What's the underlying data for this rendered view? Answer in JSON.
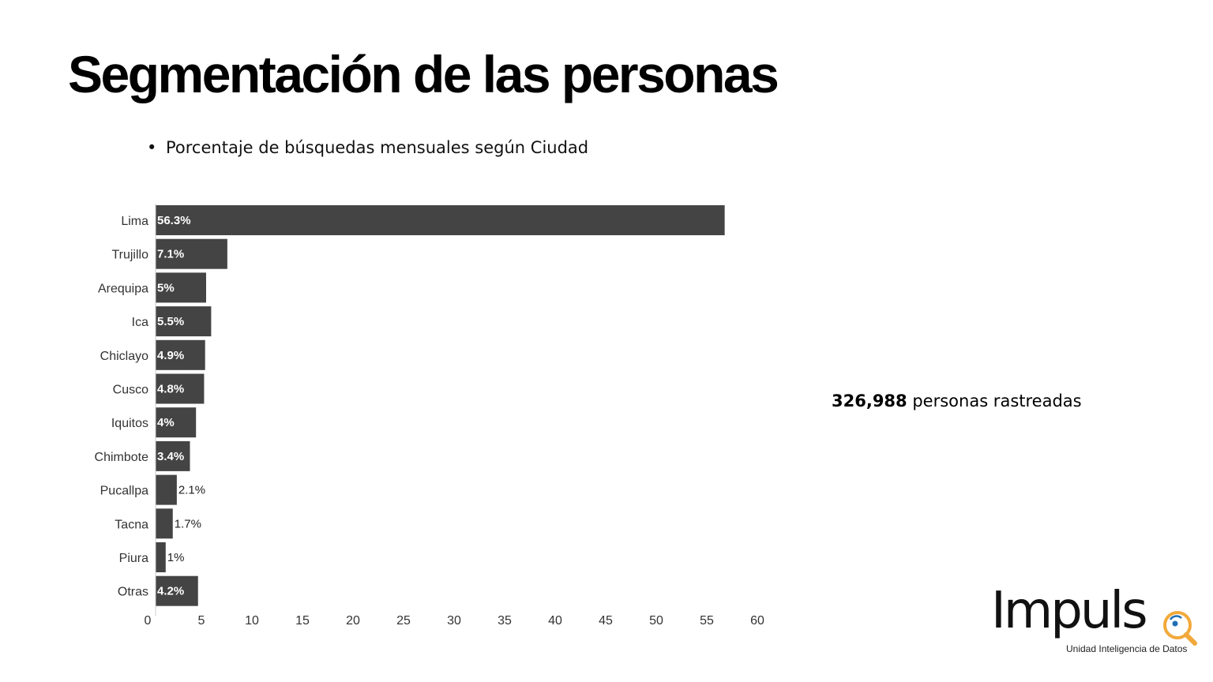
{
  "slide": {
    "title": "Segmentación de las personas",
    "bullet": "Porcentaje de búsquedas mensuales según Ciudad"
  },
  "stat": {
    "number": "326,988",
    "text": "personas rastreadas"
  },
  "logo": {
    "word": "Impuls",
    "subtitle": "Unidad Inteligencia de Datos"
  },
  "colors": {
    "bar": "#444444",
    "label_inside": "#ffffff",
    "label_outside": "#222222",
    "axis_text": "#333333",
    "logo_accent": "#f2a93b",
    "logo_blue": "#1f6fb3"
  },
  "chart_data": {
    "type": "bar",
    "orientation": "horizontal",
    "categories": [
      "Lima",
      "Trujillo",
      "Arequipa",
      "Ica",
      "Chiclayo",
      "Cusco",
      "Iquitos",
      "Chimbote",
      "Pucallpa",
      "Tacna",
      "Piura",
      "Otras"
    ],
    "values": [
      56.3,
      7.1,
      5,
      5.5,
      4.9,
      4.8,
      4,
      3.4,
      2.1,
      1.7,
      1,
      4.2
    ],
    "data_labels": [
      "56.3%",
      "7.1%",
      "5%",
      "5.5%",
      "4.9%",
      "4.8%",
      "4%",
      "3.4%",
      "2.1%",
      "1.7%",
      "1%",
      "4.2%"
    ],
    "xlim": [
      0,
      60
    ],
    "xticks": [
      "0",
      "5",
      "10",
      "15",
      "20",
      "25",
      "30",
      "35",
      "40",
      "45",
      "50",
      "55",
      "60"
    ],
    "grid": false,
    "legend": false
  }
}
